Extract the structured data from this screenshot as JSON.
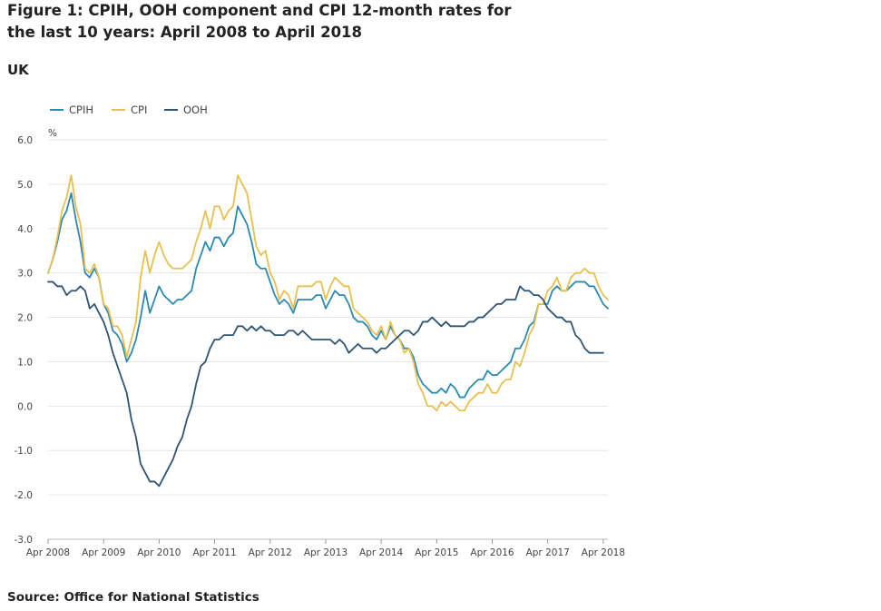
{
  "title": "Figure 1: CPIH, OOH component and CPI 12-month rates for the last 10 years: April 2008 to April 2018",
  "subtitle": "UK",
  "source": "Source: Office for National Statistics",
  "chart_data": {
    "type": "line",
    "ylabel": "%",
    "ylim": [
      -3.0,
      6.0
    ],
    "yticks": [
      "6.0",
      "5.0",
      "4.0",
      "3.0",
      "2.0",
      "1.0",
      "0.0",
      "-1.0",
      "-2.0",
      "-3.0"
    ],
    "xticks": [
      "Apr 2008",
      "Apr 2009",
      "Apr 2010",
      "Apr 2011",
      "Apr 2012",
      "Apr 2013",
      "Apr 2014",
      "Apr 2015",
      "Apr 2016",
      "Apr 2017",
      "Apr 2018"
    ],
    "x_start": "Apr 2008",
    "x_end": "Apr 2018",
    "frequency": "monthly",
    "grid": true,
    "legend_position": "top-left",
    "series": [
      {
        "name": "CPIH",
        "color": "#2a8ab3",
        "values": [
          3.0,
          3.3,
          3.7,
          4.2,
          4.4,
          4.8,
          4.2,
          3.7,
          3.0,
          2.9,
          3.1,
          2.9,
          2.3,
          2.1,
          1.7,
          1.6,
          1.4,
          1.0,
          1.2,
          1.5,
          2.0,
          2.6,
          2.1,
          2.4,
          2.7,
          2.5,
          2.4,
          2.3,
          2.4,
          2.4,
          2.5,
          2.6,
          3.1,
          3.4,
          3.7,
          3.5,
          3.8,
          3.8,
          3.6,
          3.8,
          3.9,
          4.5,
          4.3,
          4.1,
          3.7,
          3.2,
          3.1,
          3.1,
          2.8,
          2.5,
          2.3,
          2.4,
          2.3,
          2.1,
          2.4,
          2.4,
          2.4,
          2.4,
          2.5,
          2.5,
          2.2,
          2.4,
          2.6,
          2.5,
          2.5,
          2.3,
          2.0,
          1.9,
          1.9,
          1.8,
          1.6,
          1.5,
          1.7,
          1.5,
          1.8,
          1.6,
          1.5,
          1.3,
          1.3,
          1.1,
          0.7,
          0.5,
          0.4,
          0.3,
          0.3,
          0.4,
          0.3,
          0.5,
          0.4,
          0.2,
          0.2,
          0.4,
          0.5,
          0.6,
          0.6,
          0.8,
          0.7,
          0.7,
          0.8,
          0.9,
          1.0,
          1.3,
          1.3,
          1.5,
          1.8,
          1.9,
          2.3,
          2.3,
          2.3,
          2.6,
          2.7,
          2.6,
          2.6,
          2.7,
          2.8,
          2.8,
          2.8,
          2.7,
          2.7,
          2.5,
          2.3,
          2.2
        ]
      },
      {
        "name": "CPI",
        "color": "#e8c04f",
        "values": [
          3.0,
          3.3,
          3.8,
          4.4,
          4.7,
          5.2,
          4.5,
          4.1,
          3.1,
          3.0,
          3.2,
          2.9,
          2.3,
          2.2,
          1.8,
          1.8,
          1.6,
          1.1,
          1.5,
          1.9,
          2.9,
          3.5,
          3.0,
          3.4,
          3.7,
          3.4,
          3.2,
          3.1,
          3.1,
          3.1,
          3.2,
          3.3,
          3.7,
          4.0,
          4.4,
          4.0,
          4.5,
          4.5,
          4.2,
          4.4,
          4.5,
          5.2,
          5.0,
          4.8,
          4.2,
          3.6,
          3.4,
          3.5,
          3.0,
          2.8,
          2.4,
          2.6,
          2.5,
          2.2,
          2.7,
          2.7,
          2.7,
          2.7,
          2.8,
          2.8,
          2.4,
          2.7,
          2.9,
          2.8,
          2.7,
          2.7,
          2.2,
          2.1,
          2.0,
          1.9,
          1.7,
          1.6,
          1.8,
          1.5,
          1.9,
          1.6,
          1.5,
          1.2,
          1.3,
          1.0,
          0.5,
          0.3,
          0.0,
          0.0,
          -0.1,
          0.1,
          0.0,
          0.1,
          0.0,
          -0.1,
          -0.1,
          0.1,
          0.2,
          0.3,
          0.3,
          0.5,
          0.3,
          0.3,
          0.5,
          0.6,
          0.6,
          1.0,
          0.9,
          1.2,
          1.6,
          1.8,
          2.3,
          2.3,
          2.6,
          2.7,
          2.9,
          2.6,
          2.6,
          2.9,
          3.0,
          3.0,
          3.1,
          3.0,
          3.0,
          2.7,
          2.5,
          2.4
        ]
      },
      {
        "name": "OOH",
        "color": "#2e5475",
        "values": [
          2.8,
          2.8,
          2.7,
          2.7,
          2.5,
          2.6,
          2.6,
          2.7,
          2.6,
          2.2,
          2.3,
          2.1,
          1.9,
          1.6,
          1.2,
          0.9,
          0.6,
          0.3,
          -0.3,
          -0.7,
          -1.3,
          -1.5,
          -1.7,
          -1.7,
          -1.8,
          -1.6,
          -1.4,
          -1.2,
          -0.9,
          -0.7,
          -0.3,
          0.0,
          0.5,
          0.9,
          1.0,
          1.3,
          1.5,
          1.5,
          1.6,
          1.6,
          1.6,
          1.8,
          1.8,
          1.7,
          1.8,
          1.7,
          1.8,
          1.7,
          1.7,
          1.6,
          1.6,
          1.6,
          1.7,
          1.7,
          1.6,
          1.7,
          1.6,
          1.5,
          1.5,
          1.5,
          1.5,
          1.5,
          1.4,
          1.5,
          1.4,
          1.2,
          1.3,
          1.4,
          1.3,
          1.3,
          1.3,
          1.2,
          1.3,
          1.3,
          1.4,
          1.5,
          1.6,
          1.7,
          1.7,
          1.6,
          1.7,
          1.9,
          1.9,
          2.0,
          1.9,
          1.8,
          1.9,
          1.8,
          1.8,
          1.8,
          1.8,
          1.9,
          1.9,
          2.0,
          2.0,
          2.1,
          2.2,
          2.3,
          2.3,
          2.4,
          2.4,
          2.4,
          2.7,
          2.6,
          2.6,
          2.5,
          2.5,
          2.4,
          2.2,
          2.1,
          2.0,
          2.0,
          1.9,
          1.9,
          1.6,
          1.5,
          1.3,
          1.2,
          1.2,
          1.2,
          1.2
        ]
      }
    ]
  }
}
